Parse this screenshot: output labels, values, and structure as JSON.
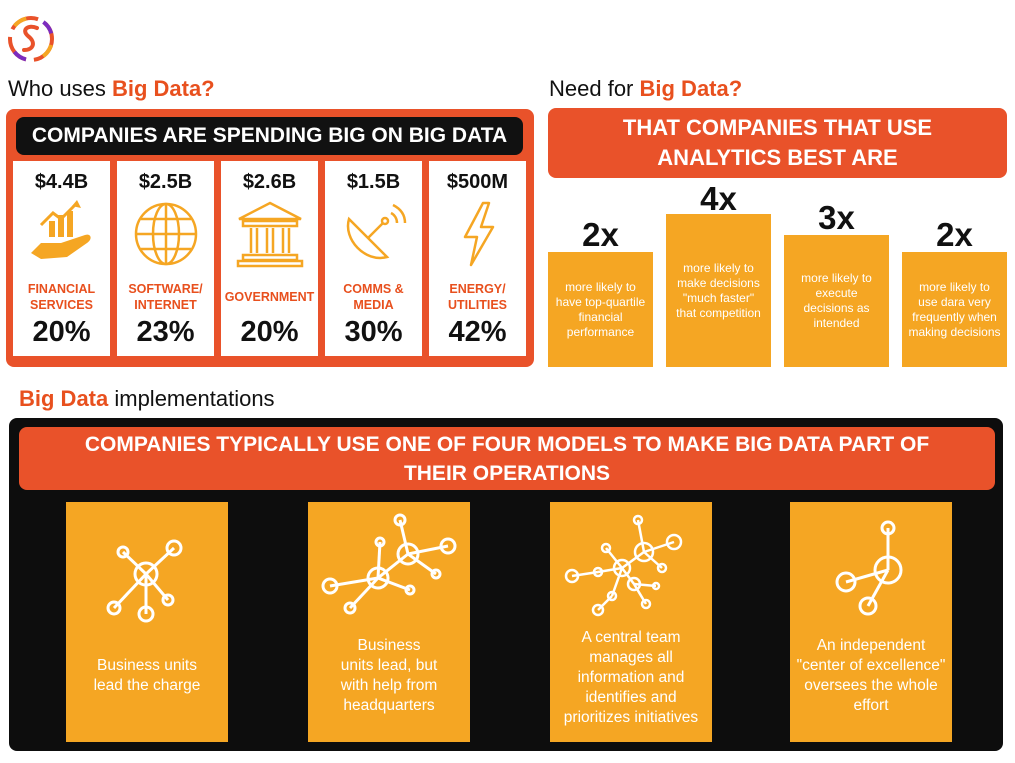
{
  "left_heading": {
    "prefix": "Who uses ",
    "accent": "Big Data?"
  },
  "right_heading": {
    "prefix": "Need for ",
    "accent": "Big Data?"
  },
  "bottom_heading": {
    "accent": "Big Data",
    "suffix": " implementations"
  },
  "spending": {
    "title": "COMPANIES ARE SPENDING BIG ON BIG DATA",
    "cards": [
      {
        "amount": "$4.4B",
        "label": "FINANCIAL\nSERVICES",
        "percent": "20%",
        "icon": "hand-growth-chart-icon"
      },
      {
        "amount": "$2.5B",
        "label": "SOFTWARE/\nINTERNET",
        "percent": "23%",
        "icon": "globe-icon"
      },
      {
        "amount": "$2.6B",
        "label": "GOVERNMENT",
        "percent": "20%",
        "icon": "government-building-icon"
      },
      {
        "amount": "$1.5B",
        "label": "COMMS &\nMEDIA",
        "percent": "30%",
        "icon": "satellite-dish-icon"
      },
      {
        "amount": "$500M",
        "label": "ENERGY/\nUTILITIES",
        "percent": "42%",
        "icon": "lightning-bolt-icon"
      }
    ]
  },
  "need": {
    "banner_line1": "THAT COMPANIES THAT USE",
    "banner_line2": "ANALYTICS BEST ARE",
    "items": [
      {
        "multiplier": "2x",
        "text": "more likely to\nhave top-quartile\nfinancial\nperformance"
      },
      {
        "multiplier": "4x",
        "text": "more likely to\nmake decisions\n\"much faster\"\nthat competition"
      },
      {
        "multiplier": "3x",
        "text": "more likely to\nexecute\ndecisions as\nintended"
      },
      {
        "multiplier": "2x",
        "text": "more likely to\nuse dara very\nfrequently when\nmaking decisions"
      }
    ]
  },
  "implementations": {
    "banner_line1": "COMPANIES TYPICALLY USE ONE OF FOUR MODELS TO MAKE BIG DATA PART OF",
    "banner_line2": "THEIR OPERATIONS",
    "models": [
      {
        "text": "Business units\nlead the charge",
        "icon": "network-nodes-icon"
      },
      {
        "text": "Business\nunits lead, but\nwith help from\nheadquarters",
        "icon": "double-network-nodes-icon"
      },
      {
        "text": "A central team\nmanages all\ninformation and\nidentifies and\nprioritizes initiatives",
        "icon": "complex-network-nodes-icon"
      },
      {
        "text": "An independent\n\"center of excellence\"\noversees the whole\neffort",
        "icon": "simple-network-nodes-icon"
      }
    ]
  },
  "colors": {
    "accent": "#e9522a",
    "amber": "#f5a623",
    "dark": "#0d0d0d"
  }
}
